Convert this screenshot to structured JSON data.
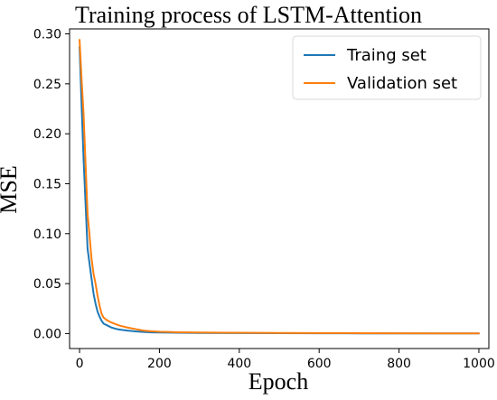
{
  "chart_data": {
    "type": "line",
    "title": "Training process of LSTM-Attention",
    "xlabel": "Epoch",
    "ylabel": "MSE",
    "xlim": [
      -25,
      1025
    ],
    "ylim": [
      -0.015,
      0.305
    ],
    "xticks": [
      0,
      200,
      400,
      600,
      800,
      1000
    ],
    "xtick_labels": [
      "0",
      "200",
      "400",
      "600",
      "800",
      "1000"
    ],
    "yticks": [
      0.0,
      0.05,
      0.1,
      0.15,
      0.2,
      0.25,
      0.3
    ],
    "ytick_labels": [
      "0.00",
      "0.05",
      "0.10",
      "0.15",
      "0.20",
      "0.25",
      "0.30"
    ],
    "grid": false,
    "legend_position": "top-right",
    "series": [
      {
        "name": "Traing set",
        "color": "#1f77b4",
        "x": [
          0,
          5,
          10,
          15,
          20,
          25,
          30,
          35,
          40,
          45,
          50,
          55,
          60,
          70,
          80,
          90,
          100,
          120,
          140,
          160,
          180,
          200,
          250,
          300,
          400,
          500,
          600,
          700,
          800,
          900,
          1000
        ],
        "y": [
          0.287,
          0.23,
          0.175,
          0.13,
          0.085,
          0.07,
          0.055,
          0.04,
          0.03,
          0.022,
          0.017,
          0.013,
          0.01,
          0.008,
          0.006,
          0.0048,
          0.004,
          0.003,
          0.0022,
          0.0016,
          0.0012,
          0.001,
          0.0008,
          0.0006,
          0.0005,
          0.0004,
          0.0003,
          0.0002,
          0.0002,
          0.0001,
          0.0001
        ]
      },
      {
        "name": "Validation set",
        "color": "#ff7f0e",
        "x": [
          0,
          5,
          10,
          15,
          20,
          25,
          30,
          35,
          40,
          45,
          50,
          55,
          60,
          70,
          80,
          90,
          100,
          120,
          140,
          160,
          180,
          200,
          250,
          300,
          400,
          500,
          600,
          700,
          800,
          900,
          1000
        ],
        "y": [
          0.294,
          0.255,
          0.22,
          0.17,
          0.12,
          0.098,
          0.075,
          0.06,
          0.05,
          0.038,
          0.028,
          0.02,
          0.016,
          0.013,
          0.011,
          0.0095,
          0.008,
          0.006,
          0.0045,
          0.003,
          0.0023,
          0.0018,
          0.0013,
          0.001,
          0.0008,
          0.0006,
          0.0005,
          0.0004,
          0.0003,
          0.0002,
          0.0002
        ]
      }
    ]
  }
}
